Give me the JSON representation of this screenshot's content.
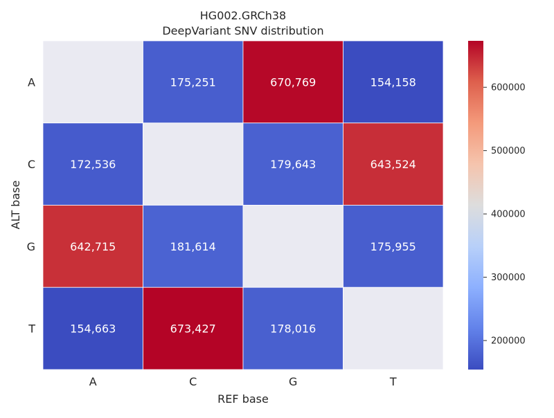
{
  "chart_data": {
    "type": "heatmap",
    "title": "HG002.GRCh38",
    "subtitle": "DeepVariant SNV distribution",
    "xlabel": "REF base",
    "ylabel": "ALT base",
    "x_categories": [
      "A",
      "C",
      "G",
      "T"
    ],
    "y_categories": [
      "A",
      "C",
      "G",
      "T"
    ],
    "values": [
      [
        null,
        175251,
        670769,
        154158
      ],
      [
        172536,
        null,
        179643,
        643524
      ],
      [
        642715,
        181614,
        null,
        175955
      ],
      [
        154663,
        673427,
        178016,
        null
      ]
    ],
    "value_labels": [
      [
        "",
        "175,251",
        "670,769",
        "154,158"
      ],
      [
        "172,536",
        "",
        "179,643",
        "643,524"
      ],
      [
        "642,715",
        "181,614",
        "",
        "175,955"
      ],
      [
        "154,663",
        "673,427",
        "178,016",
        ""
      ]
    ],
    "colorbar": {
      "colormap": "coolwarm",
      "range": [
        154158,
        673427
      ],
      "ticks": [
        200000,
        300000,
        400000,
        500000,
        600000
      ],
      "tick_labels": [
        "200000",
        "300000",
        "400000",
        "500000",
        "600000"
      ]
    },
    "missing_color": "#eaeaf2",
    "grid": false,
    "legend": "colorbar-right"
  }
}
